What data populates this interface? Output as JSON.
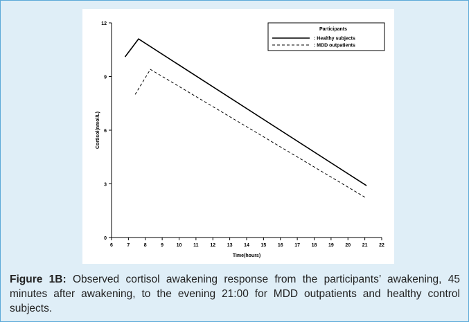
{
  "chart_data": {
    "type": "line",
    "xlabel": "Time(hours)",
    "ylabel": "Cortisol(nmol/L)",
    "xlim": [
      6,
      22
    ],
    "ylim": [
      0,
      12
    ],
    "xticks": [
      "6",
      "7",
      "8",
      "9",
      "10",
      "11",
      "12",
      "13",
      "14",
      "15",
      "16",
      "17",
      "18",
      "19",
      "20",
      "21",
      "22"
    ],
    "yticks": [
      "0",
      "3",
      "6",
      "9",
      "12"
    ],
    "legend_title": "Participants",
    "legend_position": "top-right",
    "series": [
      {
        "name": ": Healthy subjects",
        "style": "solid",
        "color": "#000000",
        "x": [
          6.8,
          7.6,
          21.1
        ],
        "y": [
          10.1,
          11.1,
          2.9
        ]
      },
      {
        "name": ": MDD outpatients",
        "style": "dashed",
        "color": "#000000",
        "x": [
          7.4,
          8.3,
          21.1
        ],
        "y": [
          8.0,
          9.4,
          2.2
        ]
      }
    ]
  },
  "caption": {
    "label": "Figure 1B:",
    "text": " Observed cortisol awakening response from the participants’ awakening, 45 minutes after awakening, to the evening 21:00 for MDD outpatients and healthy control subjects."
  }
}
